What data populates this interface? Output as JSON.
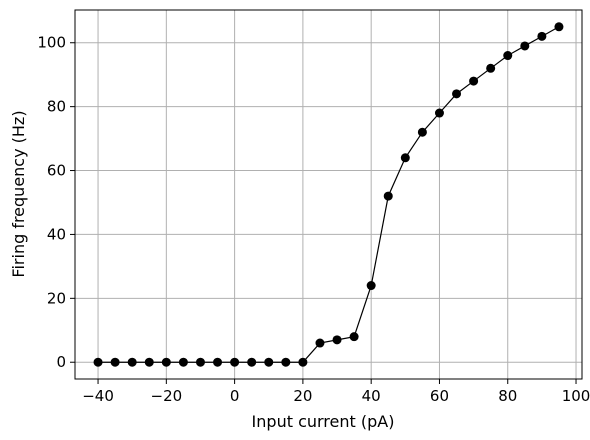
{
  "chart_data": {
    "type": "line",
    "title": "",
    "xlabel": "Input current (pA)",
    "ylabel": "Firing frequency (Hz)",
    "xlim": [
      -46.75,
      101.75
    ],
    "ylim": [
      -5.25,
      110.25
    ],
    "x_ticks": [
      -40,
      -20,
      0,
      20,
      40,
      60,
      80,
      100
    ],
    "x_tick_labels": [
      "−40",
      "−20",
      "0",
      "20",
      "40",
      "60",
      "80",
      "100"
    ],
    "y_ticks": [
      0,
      20,
      40,
      60,
      80,
      100
    ],
    "y_tick_labels": [
      "0",
      "20",
      "40",
      "60",
      "80",
      "100"
    ],
    "grid": true,
    "series": [
      {
        "color": "#000000",
        "marker": "circle",
        "x": [
          -40,
          -35,
          -30,
          -25,
          -20,
          -15,
          -10,
          -5,
          0,
          5,
          10,
          15,
          20,
          25,
          30,
          35,
          40,
          45,
          50,
          55,
          60,
          65,
          70,
          75,
          80,
          85,
          90,
          95
        ],
        "y": [
          0,
          0,
          0,
          0,
          0,
          0,
          0,
          0,
          0,
          0,
          0,
          0,
          0,
          6,
          7,
          8,
          24,
          52,
          64,
          72,
          78,
          84,
          88,
          92,
          96,
          99,
          102,
          105
        ]
      }
    ]
  }
}
